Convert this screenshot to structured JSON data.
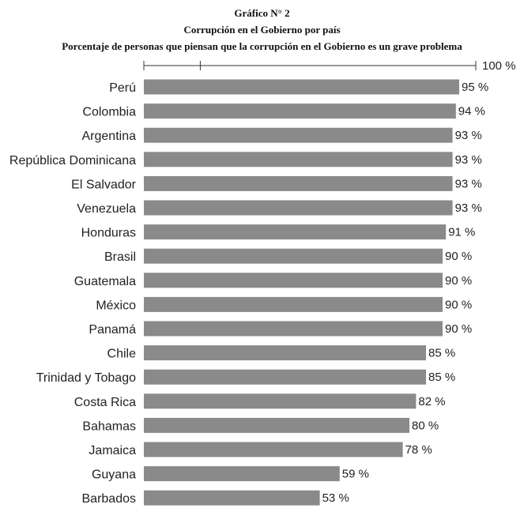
{
  "chart_data": {
    "type": "bar",
    "orientation": "horizontal",
    "title": "Gráfico N° 2",
    "subtitle": "Corrupción en el Gobierno por país",
    "subtitle2": "Porcentaje de personas que piensan que la corrupción en el Gobierno es un grave problema",
    "axis_max_label": "100 %",
    "xlim": [
      0,
      100
    ],
    "value_suffix": " %",
    "bar_color": "#8a8a8a",
    "categories": [
      "Perú",
      "Colombia",
      "Argentina",
      "República Dominicana",
      "El Salvador",
      "Venezuela",
      "Honduras",
      "Brasil",
      "Guatemala",
      "México",
      "Panamá",
      "Chile",
      "Trinidad y Tobago",
      "Costa Rica",
      "Bahamas",
      "Jamaica",
      "Guyana",
      "Barbados"
    ],
    "values": [
      95,
      94,
      93,
      93,
      93,
      93,
      91,
      90,
      90,
      90,
      90,
      85,
      85,
      82,
      80,
      78,
      59,
      53
    ],
    "value_labels": [
      "95 %",
      "94 %",
      "93 %",
      "93 %",
      "93 %",
      "93 %",
      "91 %",
      "90 %",
      "90 %",
      "90 %",
      "90 %",
      "85 %",
      "85 %",
      "82 %",
      "80 %",
      "78 %",
      "59 %",
      "53 %"
    ]
  }
}
